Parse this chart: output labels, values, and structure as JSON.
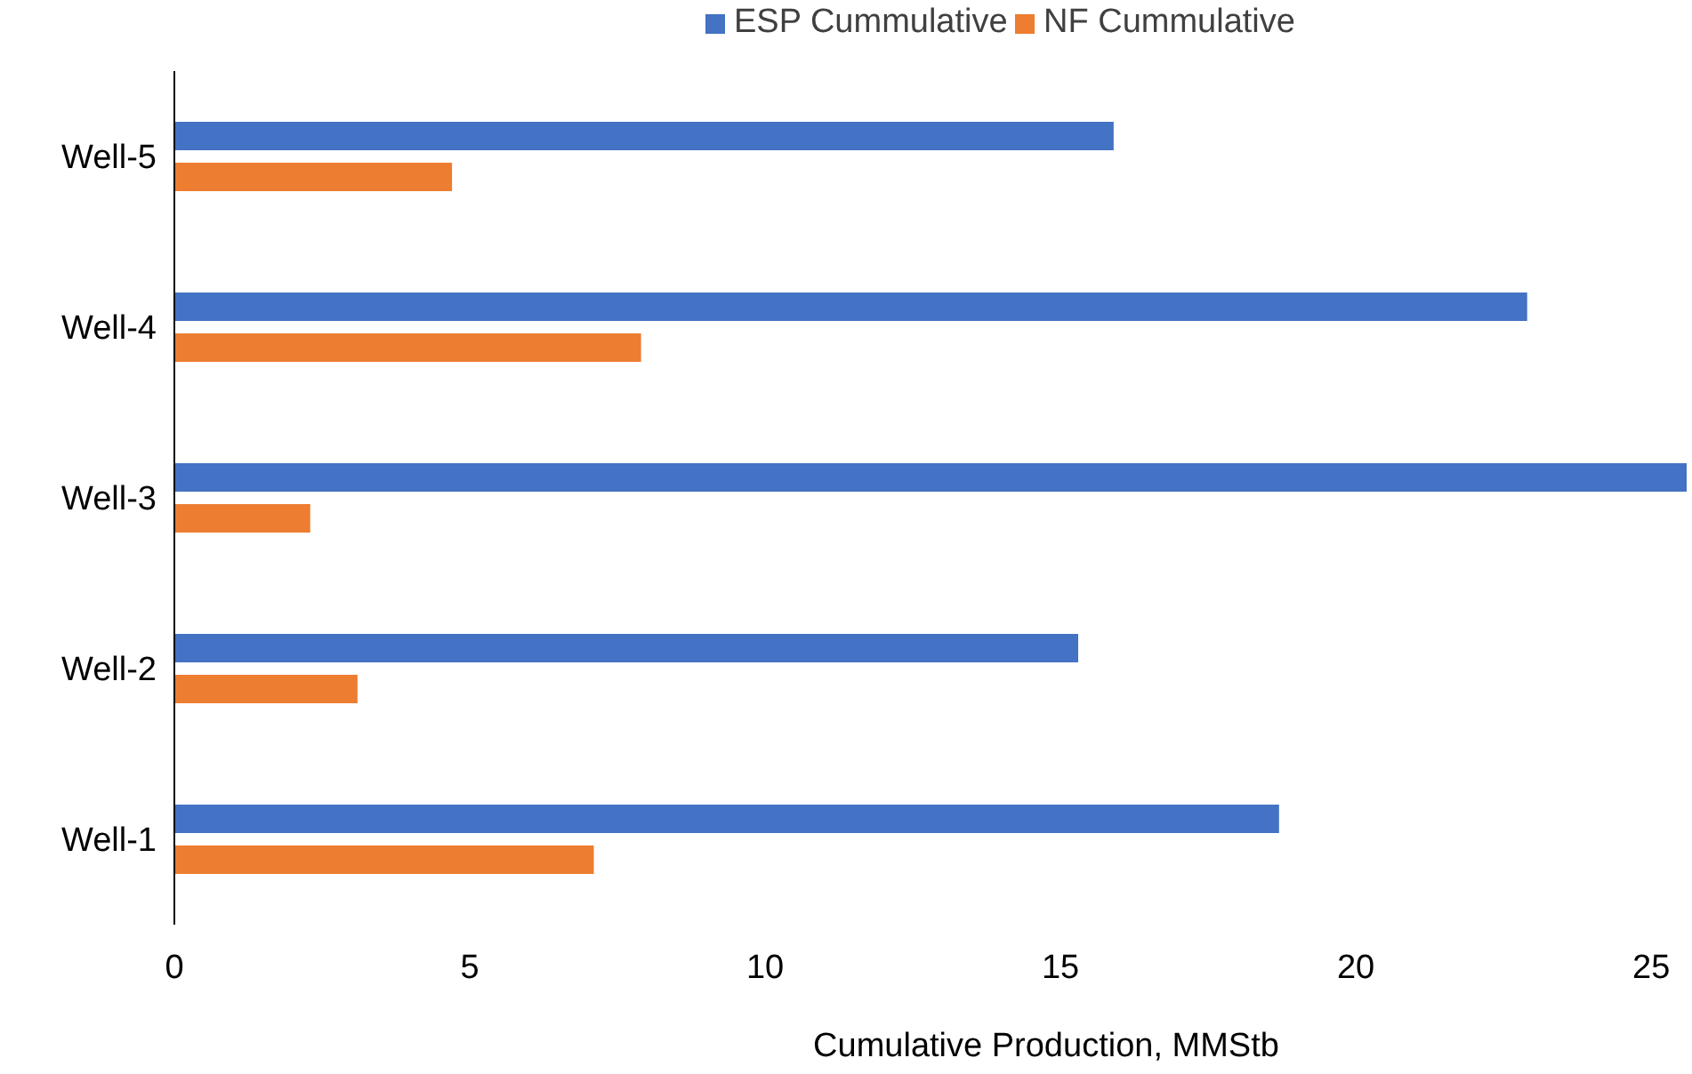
{
  "chart_data": {
    "type": "bar",
    "orientation": "horizontal",
    "xlabel": "Cumulative Production, MMStb",
    "categories": [
      "Well-5",
      "Well-4",
      "Well-3",
      "Well-2",
      "Well-1"
    ],
    "series": [
      {
        "name": "ESP Cummulative",
        "color": "#4472c4",
        "values": [
          15.9,
          22.9,
          25.6,
          15.3,
          18.7
        ]
      },
      {
        "name": "NF Cummulative",
        "color": "#ed7d31",
        "values": [
          4.7,
          7.9,
          2.3,
          3.1,
          7.1
        ]
      }
    ],
    "xlim": [
      0,
      25.6
    ],
    "xticks": [
      0,
      5,
      10,
      15,
      20,
      25
    ],
    "grid": false,
    "legend": "top"
  }
}
